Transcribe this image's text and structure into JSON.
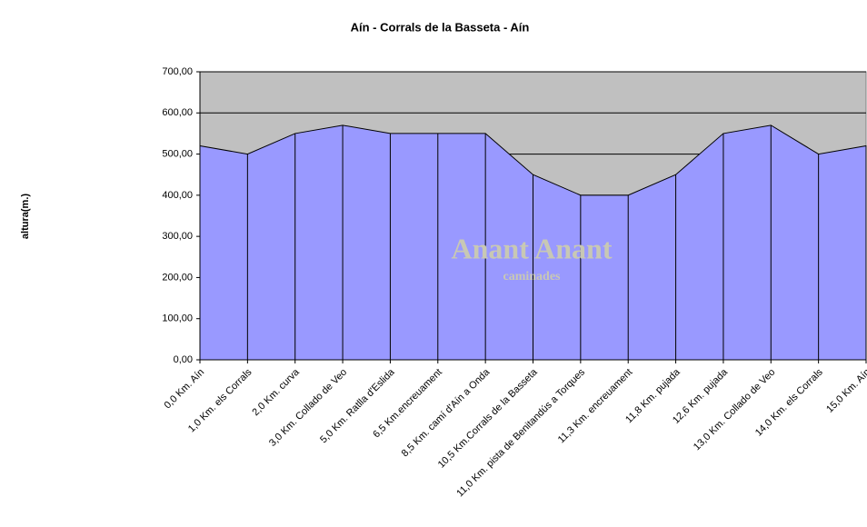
{
  "chart_data": {
    "type": "area",
    "title": "Aín - Corrals de la Basseta - Aín",
    "y_label": "altura(m.)",
    "watermark": {
      "title": "Anant Anant",
      "subtitle": "caminades"
    },
    "categories": [
      "0,0 Km. Aín",
      "1,0 Km. els Corrals",
      "2,0 Km. curva",
      "3,0 Km. Collado de Veo",
      "5,0 Km. Ratlla d'Eslida",
      "6,5 Km.encreuament",
      "8,5 Km. camí d'Aín a Onda",
      "10,5 Km.Corrals de la Basseta",
      "11,0 Km. pista de Benitandús a Torques",
      "11,3 Km. encreuament",
      "11,8 Km. pujada",
      "12,6 Km. pujada",
      "13,0 Km. Collado de Veo",
      "14,0 Km. els Corrals",
      "15,0 Km. Aín"
    ],
    "values": [
      520,
      500,
      550,
      570,
      550,
      550,
      550,
      450,
      400,
      400,
      450,
      550,
      570,
      500,
      520
    ],
    "color": "#9999ff",
    "background": "#c0c0c0",
    "ylim": [
      0,
      700
    ],
    "yticks": [
      {
        "value": 0,
        "label": "0,00"
      },
      {
        "value": 100,
        "label": "100,00"
      },
      {
        "value": 200,
        "label": "200,00"
      },
      {
        "value": 300,
        "label": "300,00"
      },
      {
        "value": 400,
        "label": "400,00"
      },
      {
        "value": 500,
        "label": "500,00"
      },
      {
        "value": 600,
        "label": "600,00"
      },
      {
        "value": 700,
        "label": "700,00"
      }
    ],
    "grid": true
  }
}
